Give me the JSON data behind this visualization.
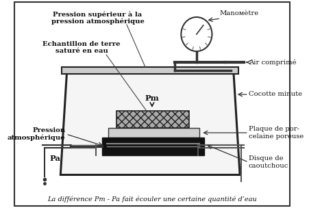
{
  "bg_color": "#ffffff",
  "border_color": "#333333",
  "title_bottom": "La différence Pm - Pa fait écouler une certaine quantité d’eau",
  "labels": {
    "pression_sup": "Pression supérieur à la\npression atmosphérique",
    "echantillon": "Echantillon de terre\nsaturé en eau",
    "pm": "Pm",
    "manometre": "Manoмètre",
    "air_comprime": "Air comprimé",
    "cocotte": "Cocotte minute",
    "pression_atm": "Pression\natmosphérique",
    "pa": "Pa",
    "plaque": "Plaque de por-\ncelaine poreuse",
    "disque": "Disque de\ncaoutchouc"
  }
}
